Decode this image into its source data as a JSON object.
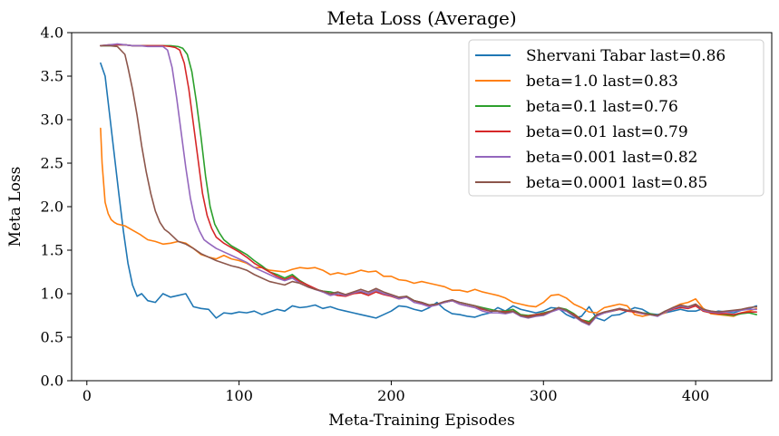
{
  "chart_data": {
    "type": "line",
    "title": "Meta Loss (Average)",
    "xlabel": "Meta-Training Episodes",
    "ylabel": "Meta Loss",
    "xlim": [
      -10,
      450
    ],
    "ylim": [
      0,
      4
    ],
    "xticks": [
      "0",
      "100",
      "200",
      "300",
      "400"
    ],
    "yticks": [
      "0.0",
      "0.5",
      "1.0",
      "1.5",
      "2.0",
      "2.5",
      "3.0",
      "3.5",
      "4.0"
    ],
    "grid": false,
    "legend_position": "top-right",
    "series": [
      {
        "name": "Shervani Tabar last=0.86",
        "color": "#1f77b4",
        "x": [
          9,
          12,
          15,
          18,
          21,
          24,
          27,
          30,
          33,
          36,
          40,
          45,
          50,
          55,
          60,
          65,
          70,
          75,
          80,
          85,
          90,
          95,
          100,
          105,
          110,
          115,
          120,
          125,
          130,
          135,
          140,
          145,
          150,
          155,
          160,
          165,
          170,
          175,
          180,
          185,
          190,
          195,
          200,
          205,
          210,
          215,
          220,
          225,
          230,
          235,
          240,
          245,
          250,
          255,
          260,
          265,
          270,
          275,
          280,
          285,
          290,
          295,
          300,
          305,
          310,
          315,
          320,
          325,
          330,
          335,
          340,
          345,
          350,
          355,
          360,
          365,
          370,
          375,
          380,
          385,
          390,
          395,
          400,
          405,
          410,
          415,
          420,
          425,
          430,
          435,
          440
        ],
        "y": [
          3.65,
          3.5,
          3.05,
          2.6,
          2.15,
          1.72,
          1.35,
          1.1,
          0.97,
          1.0,
          0.92,
          0.9,
          1.0,
          0.96,
          0.98,
          1.0,
          0.85,
          0.83,
          0.82,
          0.72,
          0.78,
          0.77,
          0.79,
          0.78,
          0.8,
          0.76,
          0.79,
          0.82,
          0.8,
          0.86,
          0.84,
          0.85,
          0.87,
          0.83,
          0.85,
          0.82,
          0.8,
          0.78,
          0.76,
          0.74,
          0.72,
          0.76,
          0.8,
          0.86,
          0.85,
          0.82,
          0.8,
          0.84,
          0.9,
          0.82,
          0.77,
          0.76,
          0.74,
          0.73,
          0.76,
          0.78,
          0.84,
          0.8,
          0.86,
          0.82,
          0.8,
          0.78,
          0.8,
          0.84,
          0.83,
          0.76,
          0.72,
          0.74,
          0.85,
          0.72,
          0.69,
          0.75,
          0.76,
          0.8,
          0.84,
          0.82,
          0.77,
          0.76,
          0.78,
          0.8,
          0.82,
          0.8,
          0.8,
          0.83,
          0.78,
          0.8,
          0.79,
          0.78,
          0.81,
          0.83,
          0.86
        ]
      },
      {
        "name": "beta=1.0 last=0.83",
        "color": "#ff7f0e",
        "x": [
          9,
          10,
          12,
          14,
          16,
          18,
          20,
          25,
          30,
          35,
          40,
          45,
          50,
          55,
          60,
          65,
          70,
          75,
          80,
          85,
          90,
          95,
          100,
          105,
          110,
          115,
          120,
          125,
          130,
          135,
          140,
          145,
          150,
          155,
          160,
          165,
          170,
          175,
          180,
          185,
          190,
          195,
          200,
          205,
          210,
          215,
          220,
          225,
          230,
          235,
          240,
          245,
          250,
          255,
          260,
          265,
          270,
          275,
          280,
          285,
          290,
          295,
          300,
          305,
          310,
          315,
          320,
          325,
          330,
          335,
          340,
          345,
          350,
          355,
          360,
          365,
          370,
          375,
          380,
          385,
          390,
          395,
          400,
          405,
          410,
          415,
          420,
          425,
          430,
          435,
          440
        ],
        "y": [
          2.9,
          2.5,
          2.05,
          1.92,
          1.85,
          1.82,
          1.8,
          1.78,
          1.73,
          1.68,
          1.62,
          1.6,
          1.57,
          1.58,
          1.6,
          1.58,
          1.52,
          1.45,
          1.42,
          1.4,
          1.44,
          1.4,
          1.38,
          1.35,
          1.3,
          1.3,
          1.27,
          1.26,
          1.25,
          1.28,
          1.3,
          1.29,
          1.3,
          1.27,
          1.22,
          1.24,
          1.22,
          1.24,
          1.27,
          1.25,
          1.26,
          1.2,
          1.2,
          1.16,
          1.15,
          1.12,
          1.14,
          1.12,
          1.1,
          1.08,
          1.04,
          1.04,
          1.02,
          1.05,
          1.02,
          1.0,
          0.98,
          0.95,
          0.9,
          0.88,
          0.86,
          0.85,
          0.9,
          0.98,
          0.99,
          0.95,
          0.88,
          0.84,
          0.79,
          0.78,
          0.84,
          0.86,
          0.88,
          0.86,
          0.76,
          0.74,
          0.76,
          0.75,
          0.78,
          0.84,
          0.88,
          0.9,
          0.94,
          0.83,
          0.77,
          0.76,
          0.75,
          0.74,
          0.78,
          0.8,
          0.83
        ]
      },
      {
        "name": "beta=0.1 last=0.76",
        "color": "#2ca02c",
        "x": [
          9,
          15,
          20,
          25,
          30,
          35,
          40,
          45,
          50,
          55,
          60,
          63,
          66,
          69,
          72,
          75,
          78,
          81,
          84,
          87,
          90,
          95,
          100,
          105,
          110,
          115,
          120,
          125,
          130,
          135,
          140,
          145,
          150,
          155,
          160,
          165,
          170,
          175,
          180,
          185,
          190,
          195,
          200,
          205,
          210,
          215,
          220,
          225,
          230,
          235,
          240,
          245,
          250,
          255,
          260,
          265,
          270,
          275,
          280,
          285,
          290,
          295,
          300,
          305,
          310,
          315,
          320,
          325,
          330,
          335,
          340,
          345,
          350,
          355,
          360,
          365,
          370,
          375,
          380,
          385,
          390,
          395,
          400,
          405,
          410,
          415,
          420,
          425,
          430,
          435,
          440
        ],
        "y": [
          3.85,
          3.85,
          3.86,
          3.86,
          3.85,
          3.85,
          3.85,
          3.85,
          3.85,
          3.85,
          3.84,
          3.82,
          3.75,
          3.55,
          3.2,
          2.8,
          2.35,
          2.0,
          1.8,
          1.7,
          1.62,
          1.55,
          1.5,
          1.45,
          1.38,
          1.32,
          1.25,
          1.22,
          1.18,
          1.22,
          1.15,
          1.1,
          1.05,
          1.03,
          1.02,
          1.0,
          0.98,
          1.0,
          1.02,
          1.0,
          1.04,
          1.0,
          0.98,
          0.95,
          0.97,
          0.92,
          0.9,
          0.87,
          0.88,
          0.9,
          0.92,
          0.9,
          0.88,
          0.86,
          0.84,
          0.82,
          0.8,
          0.8,
          0.82,
          0.76,
          0.75,
          0.76,
          0.78,
          0.8,
          0.84,
          0.82,
          0.77,
          0.7,
          0.68,
          0.76,
          0.78,
          0.8,
          0.82,
          0.8,
          0.8,
          0.78,
          0.77,
          0.75,
          0.8,
          0.83,
          0.85,
          0.84,
          0.87,
          0.8,
          0.78,
          0.77,
          0.76,
          0.75,
          0.77,
          0.78,
          0.76
        ]
      },
      {
        "name": "beta=0.01 last=0.79",
        "color": "#d62728",
        "x": [
          9,
          15,
          20,
          25,
          30,
          35,
          40,
          45,
          50,
          55,
          58,
          61,
          64,
          67,
          70,
          73,
          76,
          79,
          82,
          85,
          90,
          95,
          100,
          105,
          110,
          115,
          120,
          125,
          130,
          135,
          140,
          145,
          150,
          155,
          160,
          165,
          170,
          175,
          180,
          185,
          190,
          195,
          200,
          205,
          210,
          215,
          220,
          225,
          230,
          235,
          240,
          245,
          250,
          255,
          260,
          265,
          270,
          275,
          280,
          285,
          290,
          295,
          300,
          305,
          310,
          315,
          320,
          325,
          330,
          335,
          340,
          345,
          350,
          355,
          360,
          365,
          370,
          375,
          380,
          385,
          390,
          395,
          400,
          405,
          410,
          415,
          420,
          425,
          430,
          435,
          440
        ],
        "y": [
          3.85,
          3.86,
          3.86,
          3.86,
          3.85,
          3.85,
          3.85,
          3.85,
          3.85,
          3.84,
          3.83,
          3.8,
          3.65,
          3.35,
          2.95,
          2.55,
          2.15,
          1.9,
          1.75,
          1.65,
          1.58,
          1.53,
          1.48,
          1.42,
          1.35,
          1.3,
          1.25,
          1.2,
          1.16,
          1.2,
          1.14,
          1.1,
          1.06,
          1.02,
          1.0,
          0.98,
          0.97,
          1.0,
          1.01,
          0.98,
          1.02,
          0.99,
          0.97,
          0.94,
          0.96,
          0.92,
          0.89,
          0.86,
          0.88,
          0.9,
          0.92,
          0.88,
          0.86,
          0.84,
          0.82,
          0.8,
          0.8,
          0.79,
          0.8,
          0.75,
          0.74,
          0.76,
          0.77,
          0.8,
          0.83,
          0.8,
          0.76,
          0.7,
          0.66,
          0.75,
          0.78,
          0.8,
          0.82,
          0.8,
          0.79,
          0.77,
          0.76,
          0.75,
          0.79,
          0.82,
          0.84,
          0.83,
          0.86,
          0.8,
          0.78,
          0.77,
          0.77,
          0.76,
          0.78,
          0.79,
          0.79
        ]
      },
      {
        "name": "beta=0.001 last=0.82",
        "color": "#9467bd",
        "x": [
          9,
          15,
          20,
          25,
          30,
          35,
          40,
          45,
          50,
          53,
          56,
          59,
          62,
          65,
          68,
          71,
          74,
          77,
          80,
          85,
          90,
          95,
          100,
          105,
          110,
          115,
          120,
          125,
          130,
          135,
          140,
          145,
          150,
          155,
          160,
          165,
          170,
          175,
          180,
          185,
          190,
          195,
          200,
          205,
          210,
          215,
          220,
          225,
          230,
          235,
          240,
          245,
          250,
          255,
          260,
          265,
          270,
          275,
          280,
          285,
          290,
          295,
          300,
          305,
          310,
          315,
          320,
          325,
          330,
          335,
          340,
          345,
          350,
          355,
          360,
          365,
          370,
          375,
          380,
          385,
          390,
          395,
          400,
          405,
          410,
          415,
          420,
          425,
          430,
          435,
          440
        ],
        "y": [
          3.85,
          3.86,
          3.87,
          3.86,
          3.85,
          3.85,
          3.84,
          3.84,
          3.84,
          3.8,
          3.6,
          3.25,
          2.85,
          2.45,
          2.1,
          1.85,
          1.72,
          1.62,
          1.58,
          1.52,
          1.48,
          1.44,
          1.4,
          1.36,
          1.3,
          1.26,
          1.22,
          1.18,
          1.15,
          1.18,
          1.12,
          1.08,
          1.05,
          1.02,
          0.98,
          1.0,
          0.98,
          1.01,
          1.03,
          1.0,
          1.04,
          1.0,
          0.98,
          0.94,
          0.96,
          0.9,
          0.88,
          0.85,
          0.87,
          0.9,
          0.92,
          0.88,
          0.86,
          0.84,
          0.8,
          0.78,
          0.78,
          0.77,
          0.79,
          0.74,
          0.72,
          0.74,
          0.75,
          0.79,
          0.82,
          0.8,
          0.74,
          0.68,
          0.64,
          0.74,
          0.78,
          0.8,
          0.83,
          0.81,
          0.8,
          0.77,
          0.76,
          0.74,
          0.79,
          0.83,
          0.86,
          0.84,
          0.88,
          0.81,
          0.79,
          0.78,
          0.79,
          0.8,
          0.81,
          0.82,
          0.82
        ]
      },
      {
        "name": "beta=0.0001 last=0.85",
        "color": "#8c564b",
        "x": [
          9,
          15,
          20,
          25,
          27,
          30,
          33,
          36,
          39,
          42,
          45,
          48,
          51,
          54,
          57,
          60,
          65,
          70,
          75,
          80,
          85,
          90,
          95,
          100,
          105,
          110,
          115,
          120,
          125,
          130,
          135,
          140,
          145,
          150,
          155,
          160,
          165,
          170,
          175,
          180,
          185,
          190,
          195,
          200,
          205,
          210,
          215,
          220,
          225,
          230,
          235,
          240,
          245,
          250,
          255,
          260,
          265,
          270,
          275,
          280,
          285,
          290,
          295,
          300,
          305,
          310,
          315,
          320,
          325,
          330,
          335,
          340,
          345,
          350,
          355,
          360,
          365,
          370,
          375,
          380,
          385,
          390,
          395,
          400,
          405,
          410,
          415,
          420,
          425,
          430,
          435,
          440
        ],
        "y": [
          3.85,
          3.85,
          3.84,
          3.75,
          3.6,
          3.35,
          3.05,
          2.7,
          2.4,
          2.15,
          1.95,
          1.82,
          1.74,
          1.7,
          1.65,
          1.6,
          1.57,
          1.52,
          1.46,
          1.42,
          1.38,
          1.35,
          1.32,
          1.3,
          1.27,
          1.22,
          1.18,
          1.14,
          1.12,
          1.1,
          1.14,
          1.12,
          1.08,
          1.05,
          1.03,
          1.0,
          1.02,
          0.99,
          1.02,
          1.05,
          1.02,
          1.06,
          1.02,
          0.99,
          0.96,
          0.97,
          0.92,
          0.9,
          0.87,
          0.88,
          0.91,
          0.93,
          0.9,
          0.88,
          0.86,
          0.83,
          0.8,
          0.8,
          0.78,
          0.8,
          0.75,
          0.73,
          0.75,
          0.76,
          0.8,
          0.84,
          0.81,
          0.75,
          0.69,
          0.65,
          0.76,
          0.79,
          0.81,
          0.83,
          0.81,
          0.8,
          0.78,
          0.76,
          0.75,
          0.8,
          0.84,
          0.87,
          0.85,
          0.88,
          0.82,
          0.8,
          0.79,
          0.8,
          0.81,
          0.82,
          0.84,
          0.85
        ]
      }
    ]
  }
}
